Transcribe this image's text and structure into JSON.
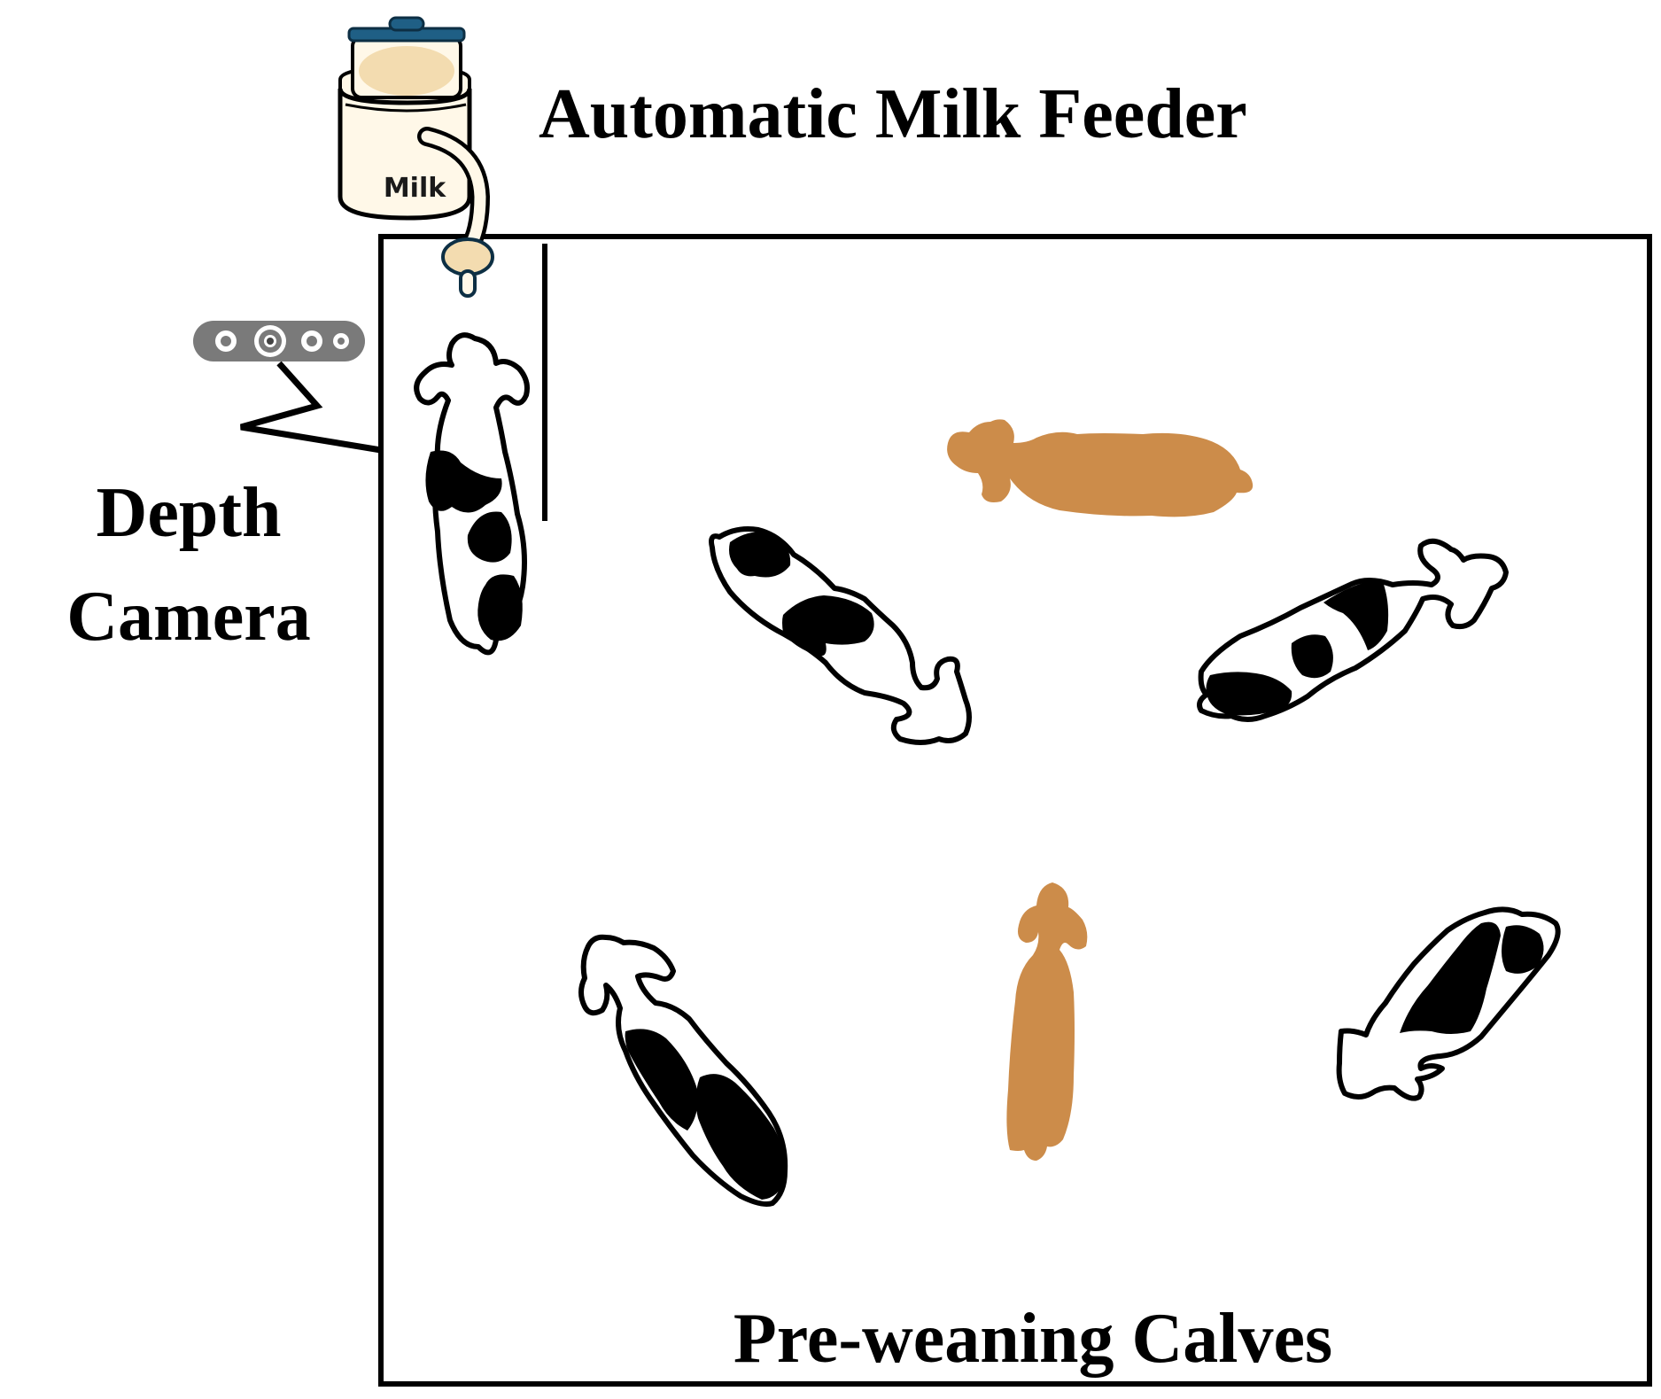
{
  "labels": {
    "feeder": "Automatic Milk Feeder",
    "camera_line1": "Depth",
    "camera_line2": "Camera",
    "calves": "Pre-weaning Calves",
    "milk": "Milk"
  },
  "colors": {
    "outline": "#000000",
    "brown_calf": "#cc8c4a",
    "milk_fill": "#f3dcb0",
    "bucket_body": "#fff8e8",
    "lid": "#1f5f85",
    "camera_body": "#7a7a7a"
  },
  "icons": {
    "feeder": "milk-bucket-icon",
    "camera": "depth-camera-icon",
    "calf": "calf-topdown-icon"
  }
}
